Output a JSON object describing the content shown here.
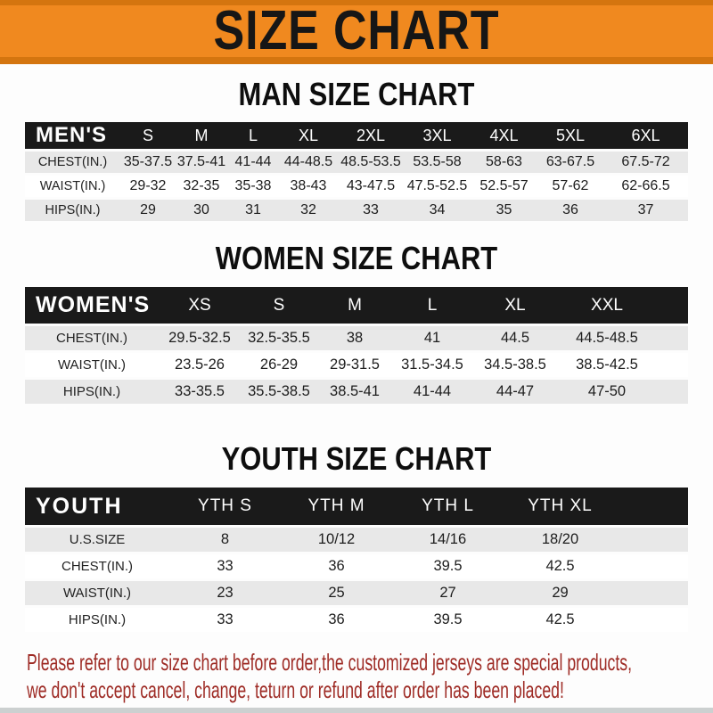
{
  "banner": {
    "title": "SIZE CHART"
  },
  "men": {
    "heading": "MAN SIZE CHART",
    "header": [
      "MEN'S",
      "S",
      "M",
      "L",
      "XL",
      "2XL",
      "3XL",
      "4XL",
      "5XL",
      "6XL"
    ],
    "rows": [
      [
        "CHEST(IN.)",
        "35-37.5",
        "37.5-41",
        "41-44",
        "44-48.5",
        "48.5-53.5",
        "53.5-58",
        "58-63",
        "63-67.5",
        "67.5-72"
      ],
      [
        "WAIST(IN.)",
        "29-32",
        "32-35",
        "35-38",
        "38-43",
        "43-47.5",
        "47.5-52.5",
        "52.5-57",
        "57-62",
        "62-66.5"
      ],
      [
        "HIPS(IN.)",
        "29",
        "30",
        "31",
        "32",
        "33",
        "34",
        "35",
        "36",
        "37"
      ]
    ]
  },
  "women": {
    "heading": "WOMEN SIZE CHART",
    "header": [
      "WOMEN'S",
      "XS",
      "S",
      "M",
      "L",
      "XL",
      "XXL"
    ],
    "rows": [
      [
        "CHEST(IN.)",
        "29.5-32.5",
        "32.5-35.5",
        "38",
        "41",
        "44.5",
        "44.5-48.5"
      ],
      [
        "WAIST(IN.)",
        "23.5-26",
        "26-29",
        "29-31.5",
        "31.5-34.5",
        "34.5-38.5",
        "38.5-42.5"
      ],
      [
        "HIPS(IN.)",
        "33-35.5",
        "35.5-38.5",
        "38.5-41",
        "41-44",
        "44-47",
        "47-50"
      ]
    ]
  },
  "youth": {
    "heading": "YOUTH SIZE CHART",
    "header": [
      "YOUTH",
      "YTH S",
      "YTH M",
      "YTH L",
      "YTH XL"
    ],
    "rows": [
      [
        "U.S.SIZE",
        "8",
        "10/12",
        "14/16",
        "18/20"
      ],
      [
        "CHEST(IN.)",
        "33",
        "36",
        "39.5",
        "42.5"
      ],
      [
        "WAIST(IN.)",
        "23",
        "25",
        "27",
        "29"
      ],
      [
        "HIPS(IN.)",
        "33",
        "36",
        "39.5",
        "42.5"
      ]
    ]
  },
  "disclaimer": {
    "line1": "Please refer to our size chart before order,the customized jerseys are special products,",
    "line2": "we don't accept cancel, change, teturn or refund after order has been placed!"
  },
  "colors": {
    "banner_orange": "#f0891f",
    "banner_border": "#d4750f",
    "table_header_black": "#1a1a1a",
    "row_gray": "#e8e8e8",
    "disclaimer_red": "#9e2b25"
  }
}
